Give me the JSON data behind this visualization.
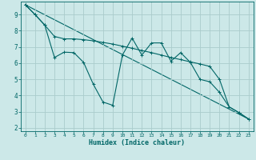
{
  "xlabel": "Humidex (Indice chaleur)",
  "background_color": "#cce8e8",
  "grid_color": "#aacccc",
  "line_color": "#006666",
  "xlim": [
    -0.5,
    23.5
  ],
  "ylim": [
    1.8,
    9.8
  ],
  "yticks": [
    2,
    3,
    4,
    5,
    6,
    7,
    8,
    9
  ],
  "xticks": [
    0,
    1,
    2,
    3,
    4,
    5,
    6,
    7,
    8,
    9,
    10,
    11,
    12,
    13,
    14,
    15,
    16,
    17,
    18,
    19,
    20,
    21,
    22,
    23
  ],
  "line1_x": [
    0,
    1,
    2,
    3,
    4,
    5,
    6,
    7,
    8,
    9,
    10,
    11,
    12,
    13,
    14,
    15,
    16,
    17,
    18,
    19,
    20,
    21,
    22,
    23
  ],
  "line1_y": [
    9.6,
    9.0,
    8.35,
    7.65,
    7.5,
    7.5,
    7.45,
    7.38,
    7.28,
    7.18,
    7.05,
    6.92,
    6.78,
    6.65,
    6.5,
    6.35,
    6.22,
    6.08,
    5.95,
    5.8,
    5.0,
    3.3,
    2.95,
    2.55
  ],
  "line2_x": [
    0,
    1,
    2,
    3,
    4,
    5,
    6,
    7,
    8,
    9,
    10,
    11,
    12,
    13,
    14,
    15,
    16,
    17,
    18,
    19,
    20,
    21,
    22,
    23
  ],
  "line2_y": [
    9.6,
    9.0,
    8.35,
    6.35,
    6.68,
    6.65,
    6.05,
    4.7,
    3.6,
    3.4,
    6.5,
    7.55,
    6.5,
    7.25,
    7.25,
    6.12,
    6.65,
    6.05,
    5.0,
    4.85,
    4.2,
    3.3,
    2.95,
    2.55
  ],
  "trend_x": [
    0,
    23
  ],
  "trend_y": [
    9.6,
    2.55
  ]
}
